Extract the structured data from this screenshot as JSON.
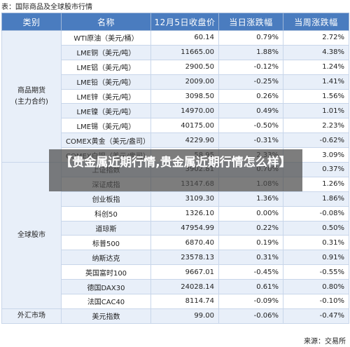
{
  "caption": "表：国际商品及全球股市行情",
  "overlay_text": "【贵金属近期行情,贵金属近期行情怎么样】",
  "source": "来源：交易所",
  "headers": [
    "类别",
    "名称",
    "12月5日收盘价",
    "当日涨跌幅",
    "当周涨跌幅"
  ],
  "colors": {
    "header_bg": "#4a7cbf",
    "up": "#d01515",
    "down": "#2f8a2f",
    "row_alt": "#e8eff9"
  },
  "groups": [
    {
      "category": "商品期货\n(主力合约)",
      "rows": [
        {
          "name": "WTI原油（美元/桶）",
          "price": "60.14",
          "day": "0.79%",
          "day_dir": "up",
          "week": "2.72%",
          "week_dir": "up"
        },
        {
          "name": "LME铜（美元/吨）",
          "price": "11665.00",
          "day": "1.88%",
          "day_dir": "up",
          "week": "4.38%",
          "week_dir": "up"
        },
        {
          "name": "LME铝（美元/吨）",
          "price": "2900.50",
          "day": "-0.12%",
          "day_dir": "down",
          "week": "1.24%",
          "week_dir": "up"
        },
        {
          "name": "LME铅（美元/吨）",
          "price": "2009.00",
          "day": "-0.25%",
          "day_dir": "down",
          "week": "1.41%",
          "week_dir": "up"
        },
        {
          "name": "LME锌（美元/吨）",
          "price": "3098.50",
          "day": "0.26%",
          "day_dir": "up",
          "week": "1.56%",
          "week_dir": "up"
        },
        {
          "name": "LME镍（美元/吨）",
          "price": "14970.00",
          "day": "0.49%",
          "day_dir": "up",
          "week": "1.01%",
          "week_dir": "up"
        },
        {
          "name": "LME锡（美元/吨）",
          "price": "40175.00",
          "day": "-0.50%",
          "day_dir": "down",
          "week": "2.23%",
          "week_dir": "up"
        },
        {
          "name": "COMEX黄金（美元/盎司）",
          "price": "4229.90",
          "day": "-0.31%",
          "day_dir": "down",
          "week": "-0.62%",
          "week_dir": "down"
        },
        {
          "name": "COMEX白银（美元/盎司）",
          "price": "58.95",
          "day": "2.33%",
          "day_dir": "up",
          "week": "3.09%",
          "week_dir": "up"
        }
      ]
    },
    {
      "category": "全球股市",
      "rows": [
        {
          "name": "上证指数",
          "price": "3902.81",
          "day": "0.70%",
          "day_dir": "up",
          "week": "0.37%",
          "week_dir": "up"
        },
        {
          "name": "深证成指",
          "price": "13147.68",
          "day": "1.08%",
          "day_dir": "up",
          "week": "1.26%",
          "week_dir": "up"
        },
        {
          "name": "创业板指",
          "price": "3109.30",
          "day": "1.36%",
          "day_dir": "up",
          "week": "1.86%",
          "week_dir": "up"
        },
        {
          "name": "科创50",
          "price": "1326.10",
          "day": "0.00%",
          "day_dir": "flat",
          "week": "-0.08%",
          "week_dir": "down"
        },
        {
          "name": "道琼斯",
          "price": "47954.99",
          "day": "0.22%",
          "day_dir": "up",
          "week": "0.50%",
          "week_dir": "up"
        },
        {
          "name": "标普500",
          "price": "6870.40",
          "day": "0.19%",
          "day_dir": "up",
          "week": "0.31%",
          "week_dir": "up"
        },
        {
          "name": "纳斯达克",
          "price": "23578.13",
          "day": "0.31%",
          "day_dir": "up",
          "week": "0.91%",
          "week_dir": "up"
        },
        {
          "name": "英国富时100",
          "price": "9667.01",
          "day": "-0.45%",
          "day_dir": "down",
          "week": "-0.55%",
          "week_dir": "down"
        },
        {
          "name": "德国DAX30",
          "price": "24028.14",
          "day": "0.61%",
          "day_dir": "up",
          "week": "0.80%",
          "week_dir": "up"
        },
        {
          "name": "法国CAC40",
          "price": "8114.74",
          "day": "-0.09%",
          "day_dir": "down",
          "week": "-0.10%",
          "week_dir": "down"
        }
      ]
    },
    {
      "category": "外汇市场",
      "rows": [
        {
          "name": "美元指数",
          "price": "99.00",
          "day": "-0.06%",
          "day_dir": "down",
          "week": "-0.47%",
          "week_dir": "down"
        }
      ]
    }
  ]
}
